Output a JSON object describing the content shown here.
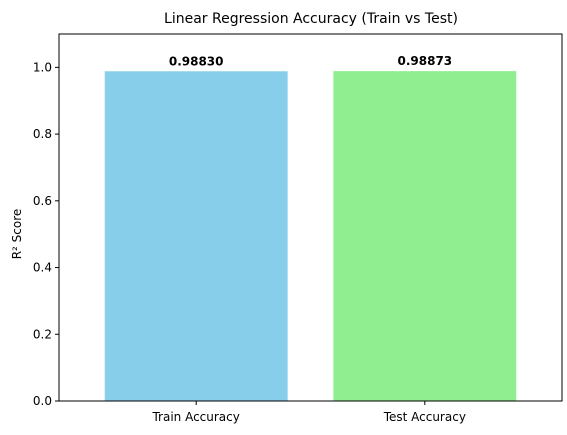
{
  "chart_data": {
    "type": "bar",
    "title": "Linear Regression Accuracy (Train vs Test)",
    "xlabel": "",
    "ylabel": "R² Score",
    "categories": [
      "Train Accuracy",
      "Test Accuracy"
    ],
    "values": [
      0.9883,
      0.98873
    ],
    "data_labels": [
      "0.98830",
      "0.98873"
    ],
    "colors": [
      "#87CEEB",
      "#90EE90"
    ],
    "ylim": [
      0,
      1.1
    ],
    "yticks": [
      0.0,
      0.2,
      0.4,
      0.6,
      0.8,
      1.0
    ],
    "ytick_labels": [
      "0.0",
      "0.2",
      "0.4",
      "0.6",
      "0.8",
      "1.0"
    ],
    "grid": false,
    "legend": "none"
  }
}
